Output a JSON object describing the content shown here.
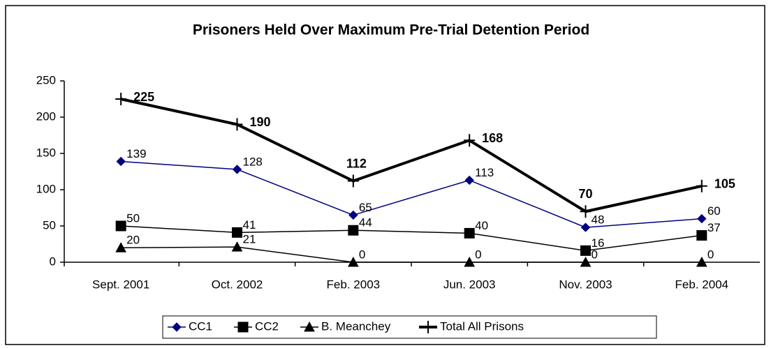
{
  "chart_data": {
    "type": "line",
    "title": "Prisoners Held Over Maximum Pre-Trial Detention Period",
    "categories": [
      "Sept. 2001",
      "Oct. 2002",
      "Feb. 2003",
      "Jun. 2003",
      "Nov. 2003",
      "Feb. 2004"
    ],
    "series": [
      {
        "name": "CC1",
        "color": "#000080",
        "marker": "diamond",
        "values": [
          139,
          128,
          65,
          113,
          48,
          60
        ]
      },
      {
        "name": "CC2",
        "color": "#000000",
        "marker": "square",
        "values": [
          50,
          41,
          44,
          40,
          16,
          37
        ]
      },
      {
        "name": "B. Meanchey",
        "color": "#000000",
        "marker": "triangle",
        "values": [
          20,
          21,
          0,
          0,
          0,
          0
        ]
      },
      {
        "name": "Total All Prisons",
        "color": "#000000",
        "marker": "plus",
        "bold": true,
        "values": [
          225,
          190,
          112,
          168,
          70,
          105
        ]
      }
    ],
    "ylim": [
      0,
      250
    ],
    "yticks": [
      0,
      50,
      100,
      150,
      200,
      250
    ],
    "legend": "bottom"
  }
}
